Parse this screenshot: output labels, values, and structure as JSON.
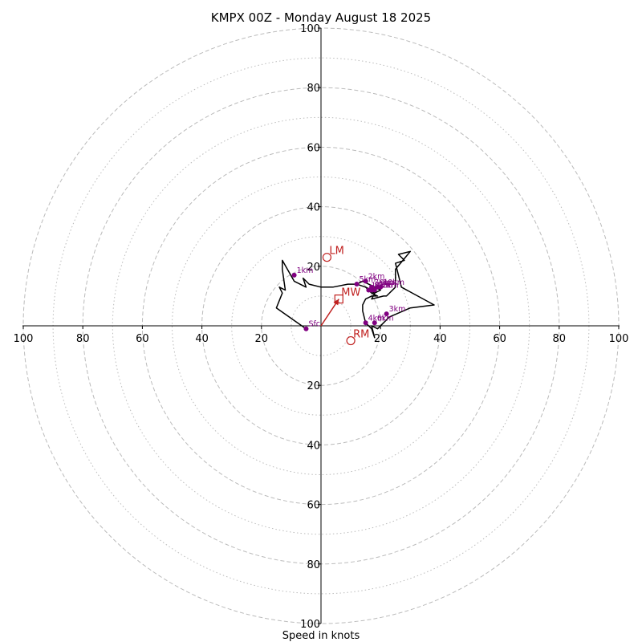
{
  "chart_data": {
    "type": "hodograph",
    "title": "KMPX 00Z - Monday August 18 2025",
    "xlabel": "Speed in knots",
    "xlim": [
      -100,
      100
    ],
    "ylim": [
      -100,
      100
    ],
    "grid": true,
    "ring_major": [
      20,
      40,
      60,
      80,
      100
    ],
    "ring_minor": [
      10,
      30,
      50,
      70,
      90
    ],
    "tick_labels_x": [
      "100",
      "80",
      "60",
      "40",
      "20",
      "20",
      "40",
      "60",
      "80",
      "100"
    ],
    "tick_values_x": [
      -100,
      -80,
      -60,
      -40,
      -20,
      20,
      40,
      60,
      80,
      100
    ],
    "tick_labels_y": [
      "100",
      "80",
      "60",
      "40",
      "20",
      "20",
      "40",
      "60",
      "80",
      "100"
    ],
    "tick_values_y": [
      100,
      80,
      60,
      40,
      20,
      -20,
      -40,
      -60,
      -80,
      -100
    ],
    "hodograph_trace": [
      [
        -5,
        -1
      ],
      [
        -15,
        6
      ],
      [
        -13,
        11
      ],
      [
        -14,
        13
      ],
      [
        -12,
        12
      ],
      [
        -13,
        19
      ],
      [
        -13,
        22
      ],
      [
        -9,
        15
      ],
      [
        -5,
        13
      ],
      [
        -6,
        16
      ],
      [
        -4,
        14
      ],
      [
        0,
        13
      ],
      [
        4,
        13
      ],
      [
        9,
        14
      ],
      [
        12,
        14
      ],
      [
        14,
        15
      ],
      [
        16,
        14
      ],
      [
        18,
        13
      ],
      [
        20,
        12
      ],
      [
        18,
        11
      ],
      [
        17,
        12
      ],
      [
        15,
        13
      ],
      [
        16,
        12
      ],
      [
        18,
        11
      ],
      [
        17,
        9
      ],
      [
        21,
        10
      ],
      [
        22,
        10
      ],
      [
        25,
        13
      ],
      [
        25,
        19
      ],
      [
        30,
        25
      ],
      [
        26,
        24
      ],
      [
        28,
        22
      ],
      [
        25,
        21
      ],
      [
        27,
        13
      ],
      [
        38,
        7
      ],
      [
        30,
        6
      ],
      [
        23,
        3
      ],
      [
        21,
        1
      ],
      [
        19,
        -1
      ],
      [
        17,
        0
      ],
      [
        18,
        -4
      ],
      [
        17,
        -1
      ],
      [
        15,
        1
      ],
      [
        14,
        5
      ],
      [
        14,
        7
      ],
      [
        15,
        9
      ],
      [
        17,
        10
      ],
      [
        19,
        10
      ],
      [
        17,
        11
      ],
      [
        15,
        13
      ],
      [
        12,
        14
      ]
    ],
    "height_markers": [
      {
        "label": "Sfc",
        "u": -5,
        "v": -1
      },
      {
        "label": "1km",
        "u": -9,
        "v": 17
      },
      {
        "label": "2km",
        "u": 15,
        "v": 15
      },
      {
        "label": "3km",
        "u": 22,
        "v": 4
      },
      {
        "label": "4km",
        "u": 15,
        "v": 1
      },
      {
        "label": "5km",
        "u": 12,
        "v": 14
      },
      {
        "label": "6km",
        "u": 18,
        "v": 1
      },
      {
        "label": "7km",
        "u": 17,
        "v": 13
      },
      {
        "label": "8km",
        "u": 17,
        "v": 12
      },
      {
        "label": "9km",
        "u": 19,
        "v": 13
      },
      {
        "label": "10km",
        "u": 20,
        "v": 13
      },
      {
        "label": "11km",
        "u": 16,
        "v": 12
      },
      {
        "label": "12km",
        "u": 18,
        "v": 12
      }
    ],
    "motion_markers": [
      {
        "label": "LM",
        "u": 2,
        "v": 23,
        "shape": "circle"
      },
      {
        "label": "MW",
        "u": 6,
        "v": 9,
        "shape": "square"
      },
      {
        "label": "RM",
        "u": 10,
        "v": -5,
        "shape": "circle"
      }
    ],
    "mean_wind_arrow": {
      "u": 6,
      "v": 9
    },
    "colors": {
      "trace": "#000000",
      "height_marker": "#800080",
      "motion": "#c0201f",
      "grid": "#bbbbbb",
      "axis": "#000000"
    }
  }
}
